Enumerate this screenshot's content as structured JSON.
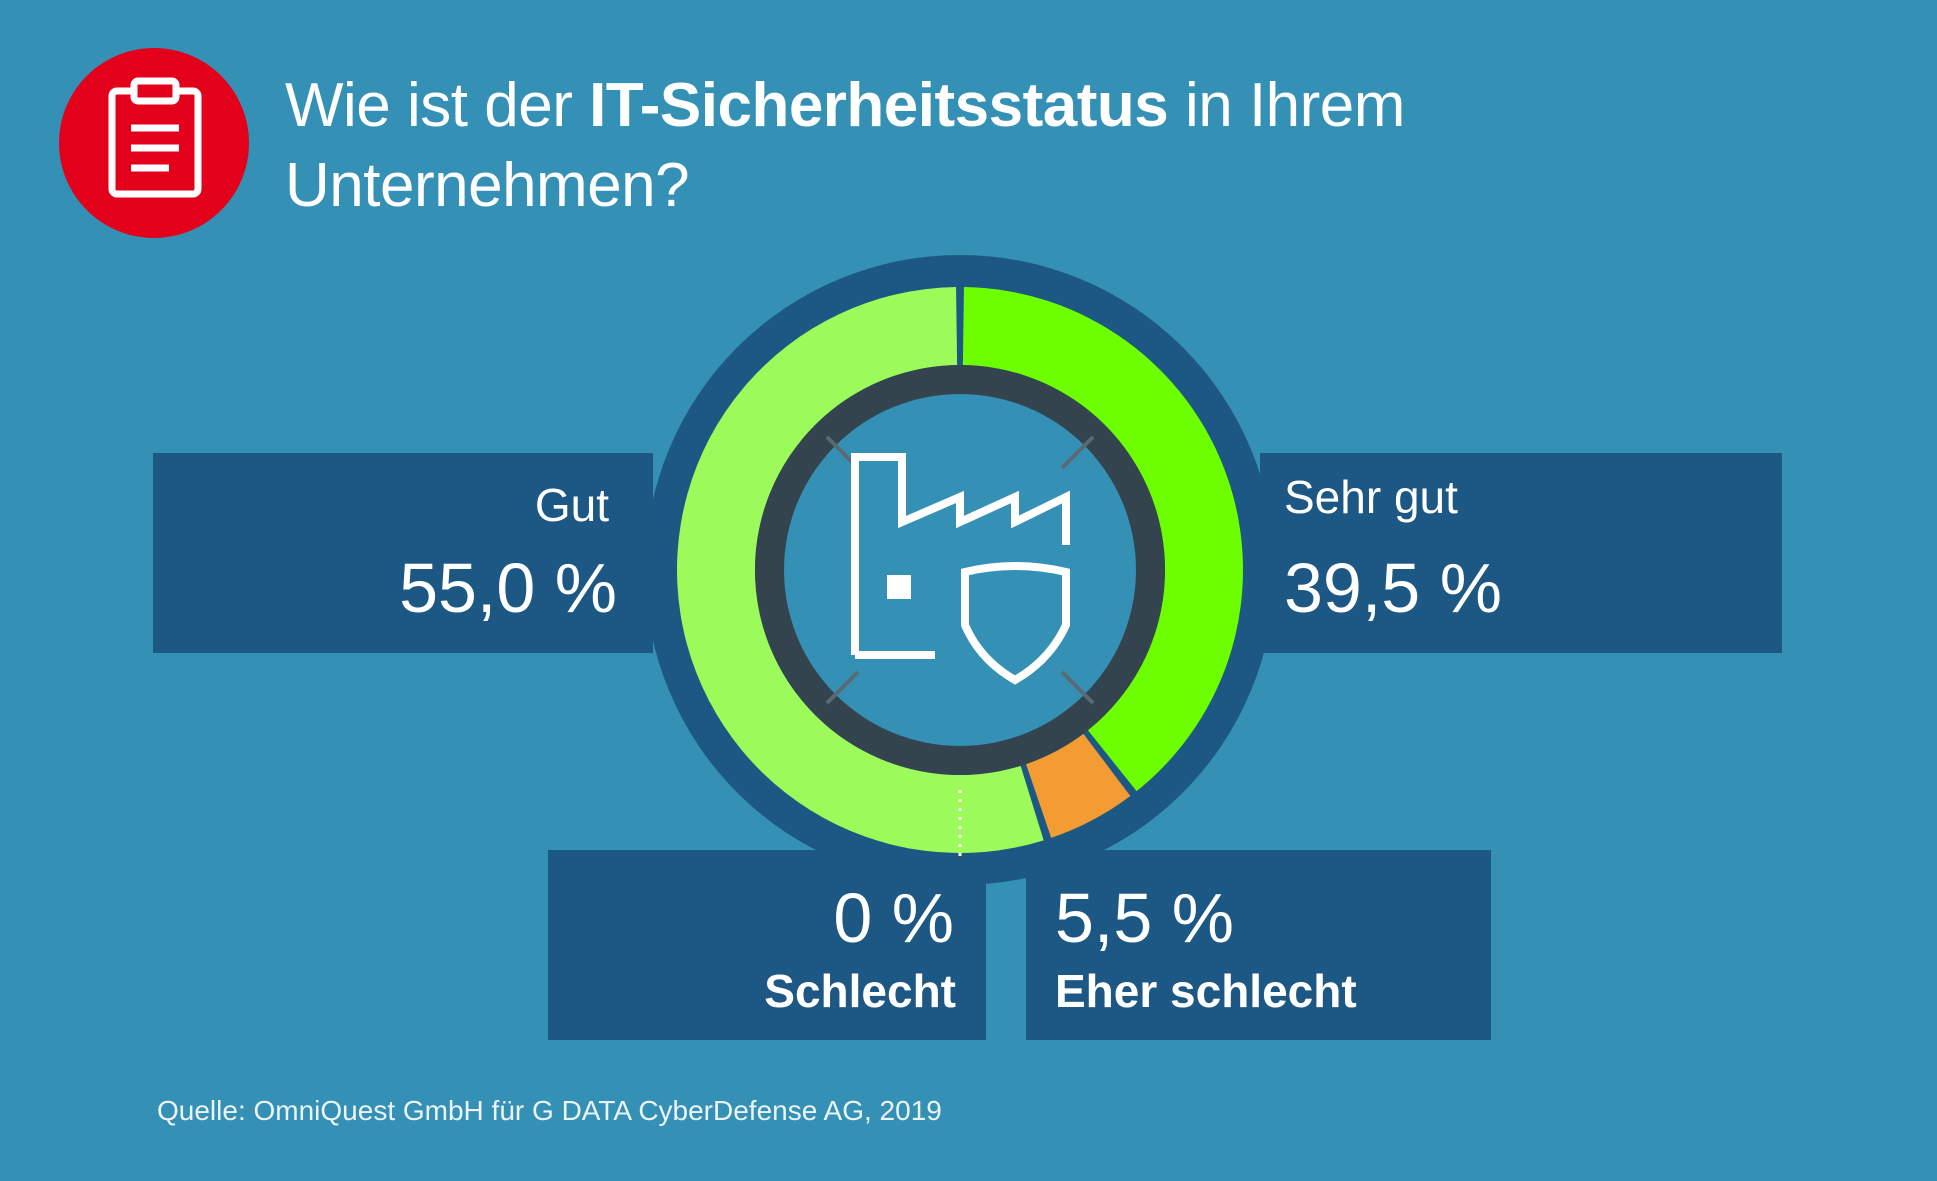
{
  "title": {
    "prefix": "Wie ist der ",
    "bold": "IT-Sicherheitsstatus",
    "suffix": " in Ihrem Unternehmen?"
  },
  "icons": {
    "header": "clipboard-icon",
    "center": "factory-shield-icon"
  },
  "colors": {
    "background": "#3490b4",
    "panel": "#1c5883",
    "header_badge": "#e2001a",
    "gut": "#9cfa5a",
    "sehr_gut": "#6dff00",
    "eher_schlecht": "#f39c34",
    "schlecht": "#ffffff",
    "inner_ring": "#34444f"
  },
  "chart_data": {
    "type": "pie",
    "title": "Wie ist der IT-Sicherheitsstatus in Ihrem Unternehmen?",
    "unit": "%",
    "slices": [
      {
        "key": "sehr_gut",
        "label": "Sehr gut",
        "value": 39.5,
        "display": "39,5 %"
      },
      {
        "key": "eher_schlecht",
        "label": "Eher schlecht",
        "value": 5.5,
        "display": "5,5 %"
      },
      {
        "key": "schlecht",
        "label": "Schlecht",
        "value": 0.0,
        "display": "0 %"
      },
      {
        "key": "gut",
        "label": "Gut",
        "value": 55.0,
        "display": "55,0 %"
      }
    ]
  },
  "source": "Quelle: OmniQuest GmbH für G DATA CyberDefense AG, 2019"
}
